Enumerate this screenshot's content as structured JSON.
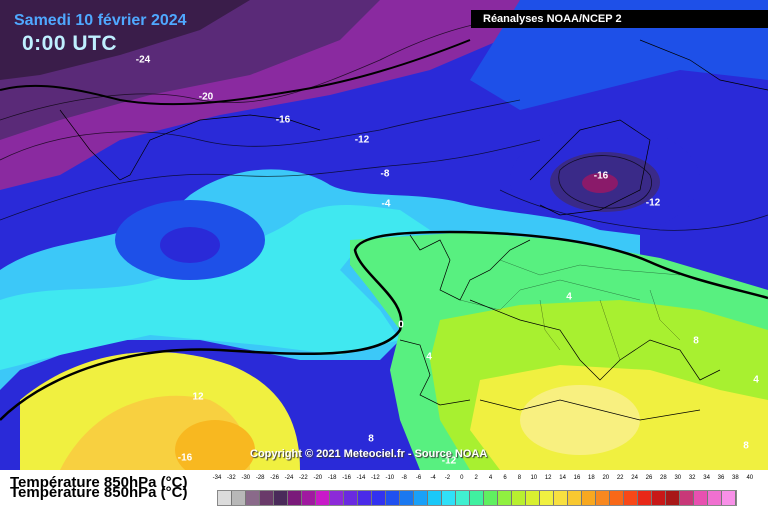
{
  "header": {
    "date": "Samedi 10 février 2024",
    "time": "0:00 UTC",
    "source": "Réanalyses NOAA/NCEP 2"
  },
  "map": {
    "copyright": "Copyright © 2021 Meteociel.fr - Source NOAA",
    "contour_labels": [
      "-24",
      "-20",
      "-16",
      "-12",
      "-8",
      "-4",
      "-16",
      "-12",
      "0",
      "4",
      "4",
      "8",
      "4",
      "12",
      "8",
      "-16",
      "-12",
      "8"
    ],
    "colors": {
      "frigid": "#3a1d4a",
      "very_cold": "#5a2a78",
      "magenta": "#8a2aa0",
      "cold": "#2a2ad8",
      "cold_blue": "#1e50e8",
      "cyan": "#3cc8f8",
      "aqua": "#40e8f0",
      "green": "#58f080",
      "lime": "#a8f030",
      "yellow": "#f0f040",
      "orange": "#f8b820"
    }
  },
  "legend": {
    "title": "Température 850hPa (°C)",
    "ticks": [
      "-34",
      "-32",
      "-30",
      "-28",
      "-26",
      "-24",
      "-22",
      "-20",
      "-18",
      "-16",
      "-14",
      "-12",
      "-10",
      "-8",
      "-6",
      "-4",
      "-2",
      "0",
      "2",
      "4",
      "6",
      "8",
      "10",
      "12",
      "14",
      "16",
      "18",
      "20",
      "22",
      "24",
      "26",
      "28",
      "30",
      "32",
      "34",
      "36",
      "38",
      "40"
    ],
    "swatches": [
      "#dcdcdc",
      "#b8b8b8",
      "#8a6a8a",
      "#6a3a6a",
      "#4a2a5a",
      "#7a1a7a",
      "#a01aa0",
      "#c81ac8",
      "#8c2ad8",
      "#6a2ae0",
      "#4a2ae8",
      "#3232f0",
      "#2050f0",
      "#1a78f0",
      "#1aa0f8",
      "#1ac8f8",
      "#30e0f8",
      "#40f0d0",
      "#40f0a0",
      "#60f060",
      "#90f040",
      "#b8f030",
      "#d8f030",
      "#f0f040",
      "#f8e040",
      "#f8c830",
      "#f8a820",
      "#f88820",
      "#f86818",
      "#f84818",
      "#e82818",
      "#c81818",
      "#a81818",
      "#c83878",
      "#e850b0",
      "#f070d0",
      "#f890e8"
    ]
  }
}
